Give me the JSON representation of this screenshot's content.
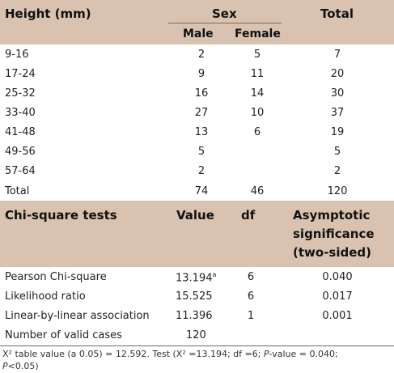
{
  "table1": {
    "header": {
      "height": "Height (mm)",
      "sex": "Sex",
      "total": "Total",
      "male": "Male",
      "female": "Female"
    },
    "rows": [
      {
        "label": "9-16",
        "male": "2",
        "female": "5",
        "total": "7"
      },
      {
        "label": "17-24",
        "male": "9",
        "female": "11",
        "total": "20"
      },
      {
        "label": "25-32",
        "male": "16",
        "female": "14",
        "total": "30"
      },
      {
        "label": "33-40",
        "male": "27",
        "female": "10",
        "total": "37"
      },
      {
        "label": "41-48",
        "male": "13",
        "female": "6",
        "total": "19"
      },
      {
        "label": "49-56",
        "male": "5",
        "female": "",
        "total": "5"
      },
      {
        "label": "57-64",
        "male": "2",
        "female": "",
        "total": "2"
      },
      {
        "label": "Total",
        "male": "74",
        "female": "46",
        "total": "120"
      }
    ]
  },
  "table2": {
    "header": {
      "test": "Chi-square tests",
      "value": "Value",
      "df": "df",
      "sig1": "Asymptotic",
      "sig2": "significance",
      "sig3": "(two-sided)"
    },
    "rows": [
      {
        "label": "Pearson Chi-square",
        "value": "13.194",
        "sup": "a",
        "df": "6",
        "sig": "0.040"
      },
      {
        "label": "Likelihood ratio",
        "value": "15.525",
        "sup": "",
        "df": "6",
        "sig": "0.017"
      },
      {
        "label": "Linear-by-linear association",
        "value": "11.396",
        "sup": "",
        "df": "1",
        "sig": "0.001"
      },
      {
        "label": "Number of valid cases",
        "value": "120",
        "sup": "",
        "df": "",
        "sig": ""
      }
    ]
  },
  "footnote": {
    "line1_a": "X² table value (a 0.05) = 12.592. Test (X² =13.194; df =6; ",
    "line1_p": "P",
    "line1_b": "-value = 0.040;",
    "line2_p": "P",
    "line2_b": "<0.05)"
  },
  "colors": {
    "header_band": "#d9c3b0"
  }
}
